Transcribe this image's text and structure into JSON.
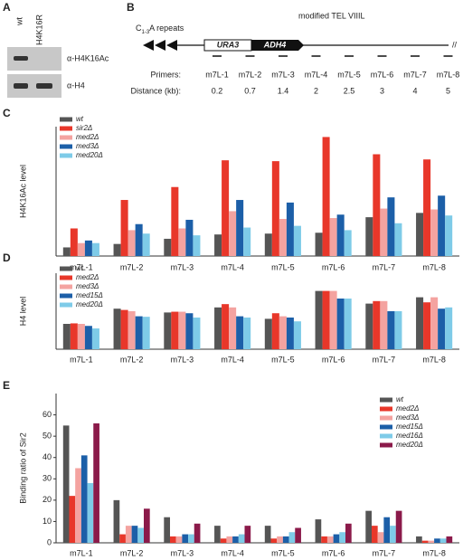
{
  "panel_labels": [
    "A",
    "B",
    "C",
    "D",
    "E"
  ],
  "blot": {
    "lanes": [
      "wt",
      "H4K16R"
    ],
    "antibodies": [
      "α-H4K16Ac",
      "α-H4"
    ]
  },
  "diagram": {
    "title": "modified TEL VIIIL",
    "repeats_main": "C",
    "repeats_sub": "1-3",
    "repeats_rest": "A repeats",
    "genes": [
      "URA3",
      "ADH4"
    ],
    "break": "//",
    "primers_label": "Primers:",
    "primers": [
      "m7L-1",
      "m7L-2",
      "m7L-3",
      "m7L-4",
      "m7L-5",
      "m7L-6",
      "m7L-7",
      "m7L-8"
    ],
    "distance_label": "Distance (kb):",
    "distances": [
      "0.2",
      "0.7",
      "1.4",
      "2",
      "2.5",
      "3",
      "4",
      "5"
    ]
  },
  "chart_data": [
    {
      "type": "bar",
      "y_label": "H4K16Ac level",
      "ylim": [
        0,
        15
      ],
      "categories": [
        "m7L-1",
        "m7L-2",
        "m7L-3",
        "m7L-4",
        "m7L-5",
        "m7L-6",
        "m7L-7",
        "m7L-8"
      ],
      "series": [
        {
          "name": "wt",
          "color": "#555555",
          "values": [
            1.0,
            1.4,
            2.0,
            2.5,
            2.6,
            2.7,
            4.5,
            5.0
          ]
        },
        {
          "name": "sir2Δ",
          "color": "#e8372a",
          "values": [
            3.2,
            6.5,
            8.0,
            11.1,
            11.0,
            13.8,
            11.8,
            11.2
          ]
        },
        {
          "name": "med2Δ",
          "color": "#f4a3a0",
          "values": [
            1.5,
            3.0,
            3.2,
            5.2,
            4.3,
            4.4,
            5.5,
            5.4
          ]
        },
        {
          "name": "med3Δ",
          "color": "#1c5fa8",
          "values": [
            1.8,
            3.7,
            4.2,
            6.5,
            6.2,
            4.8,
            6.8,
            7.0
          ]
        },
        {
          "name": "med20Δ",
          "color": "#7ecbe8",
          "values": [
            1.5,
            2.6,
            2.4,
            3.3,
            3.5,
            3.0,
            3.8,
            4.7
          ]
        }
      ]
    },
    {
      "type": "bar",
      "y_label": "H4 level",
      "ylim": [
        0,
        3
      ],
      "categories": [
        "m7L-1",
        "m7L-2",
        "m7L-3",
        "m7L-4",
        "m7L-5",
        "m7L-6",
        "m7L-7",
        "m7L-8"
      ],
      "series": [
        {
          "name": "wt",
          "color": "#555555",
          "values": [
            1.0,
            1.6,
            1.45,
            1.65,
            1.2,
            2.3,
            1.8,
            2.05
          ]
        },
        {
          "name": "med2Δ",
          "color": "#e8372a",
          "values": [
            1.02,
            1.55,
            1.48,
            1.78,
            1.42,
            2.3,
            1.9,
            1.85
          ]
        },
        {
          "name": "med3Δ",
          "color": "#f4a3a0",
          "values": [
            1.0,
            1.5,
            1.48,
            1.65,
            1.3,
            2.3,
            1.9,
            2.05
          ]
        },
        {
          "name": "med15Δ",
          "color": "#1c5fa8",
          "values": [
            0.92,
            1.3,
            1.42,
            1.3,
            1.25,
            2.0,
            1.5,
            1.6
          ]
        },
        {
          "name": "med20Δ",
          "color": "#7ecbe8",
          "values": [
            0.82,
            1.28,
            1.25,
            1.25,
            1.1,
            2.0,
            1.5,
            1.65
          ]
        }
      ]
    },
    {
      "type": "bar",
      "y_label": "Binding ratio of Sir2",
      "ylim": [
        0,
        70
      ],
      "yticks": [
        0,
        10,
        20,
        30,
        40,
        50,
        60
      ],
      "categories": [
        "m7L-1",
        "m7L-2",
        "m7L-3",
        "m7L-4",
        "m7L-5",
        "m7L-6",
        "m7L-7",
        "m7L-8"
      ],
      "series": [
        {
          "name": "wt",
          "color": "#555555",
          "values": [
            55,
            20,
            12,
            8,
            8,
            11,
            15,
            3
          ]
        },
        {
          "name": "med2Δ",
          "color": "#e8372a",
          "values": [
            22,
            4,
            3,
            2,
            2,
            3,
            8,
            1
          ]
        },
        {
          "name": "med3Δ",
          "color": "#f4a3a0",
          "values": [
            35,
            8,
            3,
            3,
            3,
            3,
            5,
            1
          ]
        },
        {
          "name": "med15Δ",
          "color": "#1c5fa8",
          "values": [
            41,
            8,
            4,
            3,
            3,
            4,
            12,
            2
          ]
        },
        {
          "name": "med16Δ",
          "color": "#7ecbe8",
          "values": [
            28,
            7,
            4,
            4,
            5,
            5,
            8,
            2
          ]
        },
        {
          "name": "med20Δ",
          "color": "#8b1a4a",
          "values": [
            56,
            16,
            9,
            8,
            7,
            9,
            15,
            3
          ]
        }
      ]
    }
  ]
}
